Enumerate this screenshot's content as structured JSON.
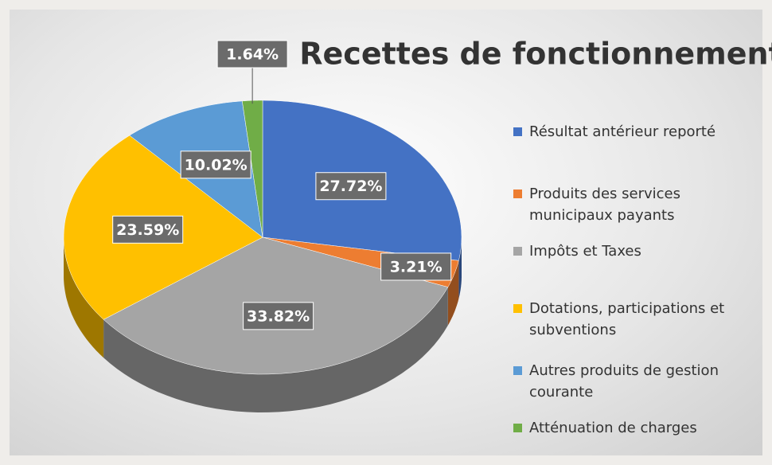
{
  "chart_data": {
    "type": "pie",
    "title": "Recettes de fonctionnement",
    "categories": [
      "Résultat antérieur reporté",
      "Produits des services municipaux payants",
      "Impôts et Taxes",
      "Dotations, participations et subventions",
      "Autres produits de gestion courante",
      "Atténuation de charges"
    ],
    "values": [
      27.72,
      3.21,
      33.82,
      23.59,
      10.02,
      1.64
    ],
    "value_labels": [
      "27.72%",
      "3.21%",
      "33.82%",
      "23.59%",
      "10.02%",
      "1.64%"
    ],
    "colors": [
      "#4472c4",
      "#ed7d31",
      "#a5a5a5",
      "#ffc000",
      "#5b9bd5",
      "#70ad47"
    ],
    "legend": "right"
  }
}
